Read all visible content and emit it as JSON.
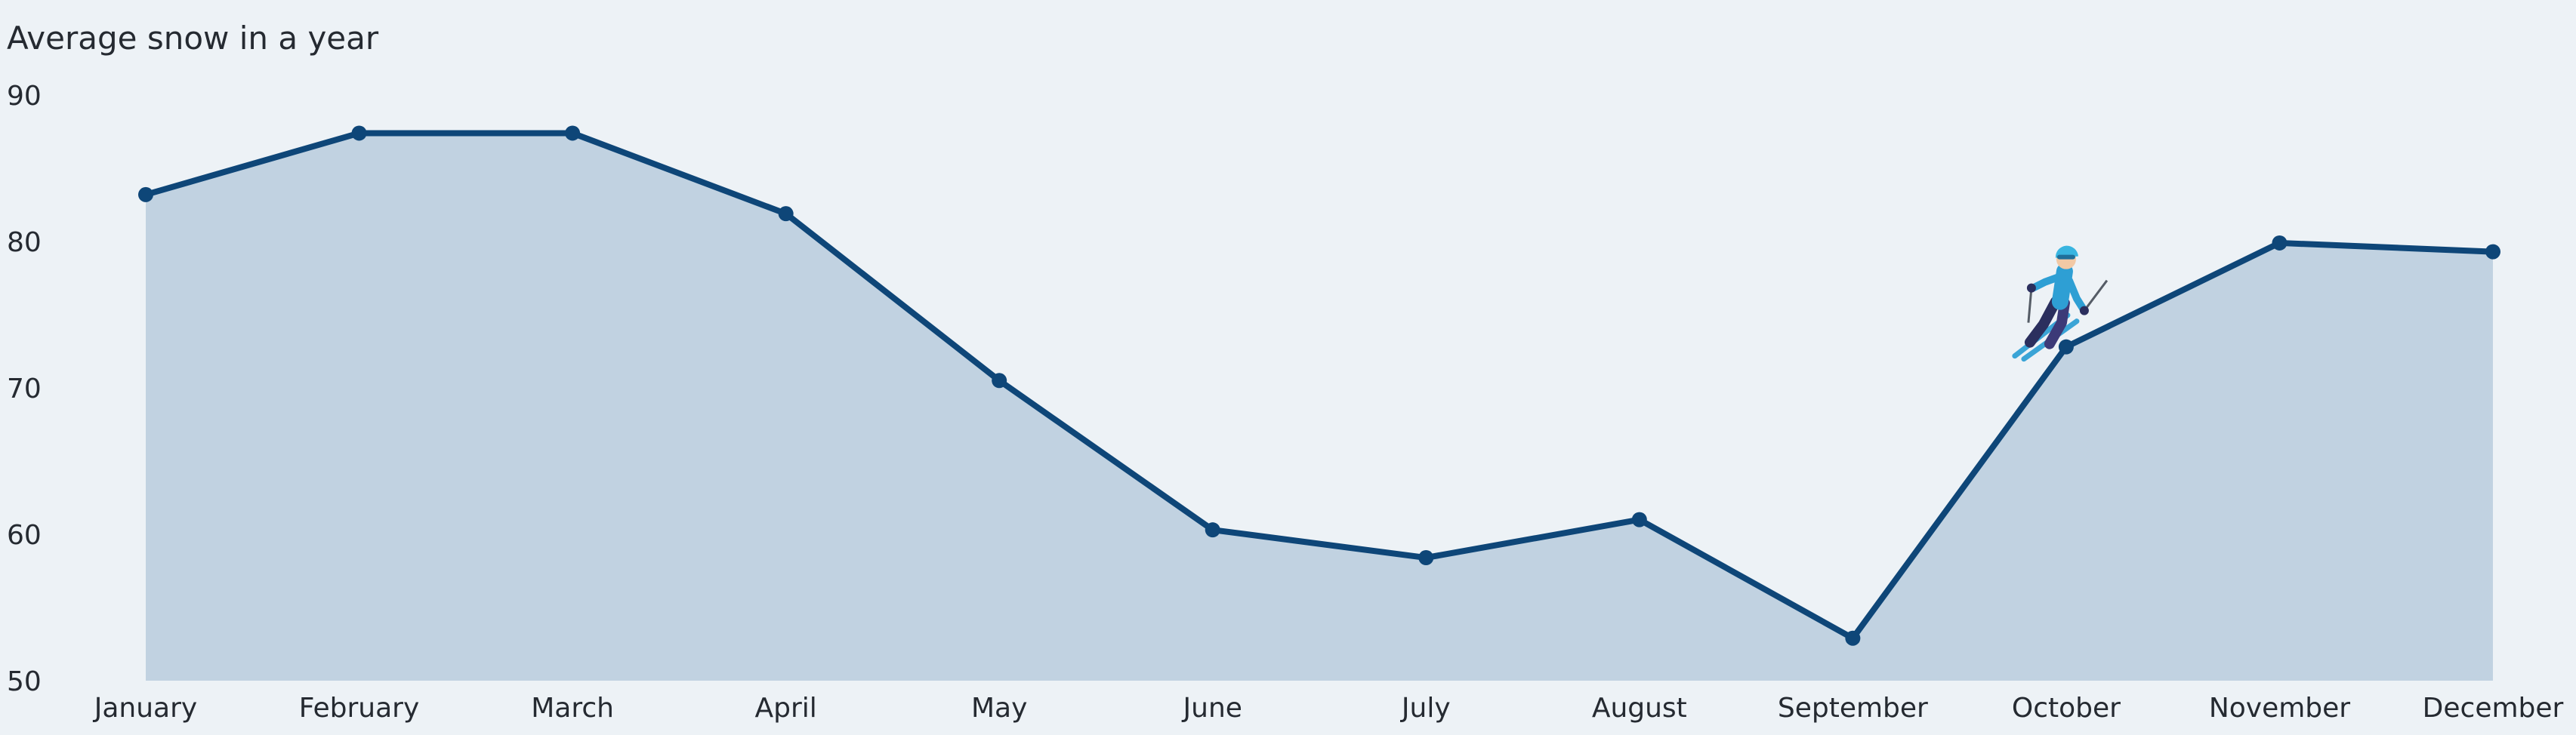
{
  "chart_data": {
    "type": "area",
    "title": "Average snow in a year",
    "xlabel": "",
    "ylabel": "",
    "categories": [
      "January",
      "February",
      "March",
      "April",
      "May",
      "June",
      "July",
      "August",
      "September",
      "October",
      "November",
      "December"
    ],
    "series": [
      {
        "values": [
          83.2,
          87.4,
          87.4,
          81.9,
          70.5,
          60.3,
          58.4,
          61.0,
          52.9,
          72.8,
          79.9,
          79.3
        ]
      }
    ],
    "ylim": [
      50,
      90
    ],
    "yticks": [
      50,
      60,
      70,
      80,
      90
    ],
    "grid": false,
    "legend": "none",
    "colors": {
      "line": "#0e4678",
      "marker": "#0e4678",
      "area": "#c1d2e1",
      "background": "#edf2f6",
      "text": "#252a31"
    },
    "decorations": [
      {
        "icon": "skier-icon",
        "near_category": "October"
      }
    ]
  }
}
